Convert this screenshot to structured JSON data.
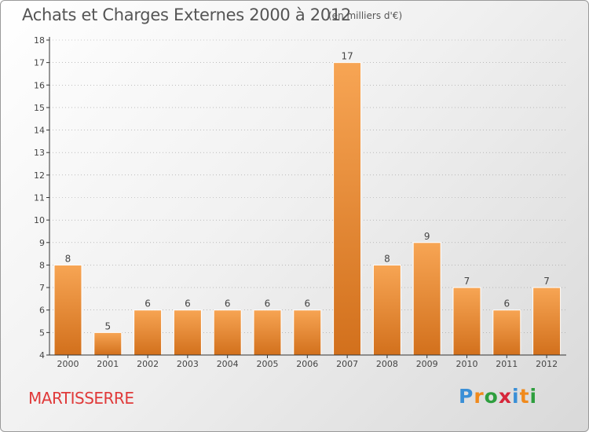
{
  "header": {
    "title": "Achats et Charges Externes 2000 à 2012",
    "subtitle": "(en milliers d'€)"
  },
  "footer": {
    "commune": "MARTISSERRE",
    "logo": {
      "letters": [
        "P",
        "r",
        "o",
        "x",
        "i",
        "t",
        "i"
      ],
      "colors": [
        "#3a8fd6",
        "#f08a1c",
        "#2e9e3e",
        "#d6263a",
        "#3a8fd6",
        "#f08a1c",
        "#2e9e3e"
      ]
    }
  },
  "colors": {
    "bar_light": "#f7a554",
    "bar_dark": "#d2701c",
    "axis": "#333333",
    "grid": "#9a9a9a"
  },
  "chart_data": {
    "type": "bar",
    "title": "Achats et Charges Externes 2000 à 2012",
    "subtitle": "(en milliers d'€)",
    "categories": [
      "2000",
      "2001",
      "2002",
      "2003",
      "2004",
      "2005",
      "2006",
      "2007",
      "2008",
      "2009",
      "2010",
      "2011",
      "2012"
    ],
    "values": [
      8,
      5,
      6,
      6,
      6,
      6,
      6,
      17,
      8,
      9,
      7,
      6,
      7
    ],
    "ylim": [
      4,
      18
    ],
    "yticks": [
      4,
      5,
      6,
      7,
      8,
      9,
      10,
      11,
      12,
      13,
      14,
      15,
      16,
      17,
      18
    ],
    "grid": true
  }
}
